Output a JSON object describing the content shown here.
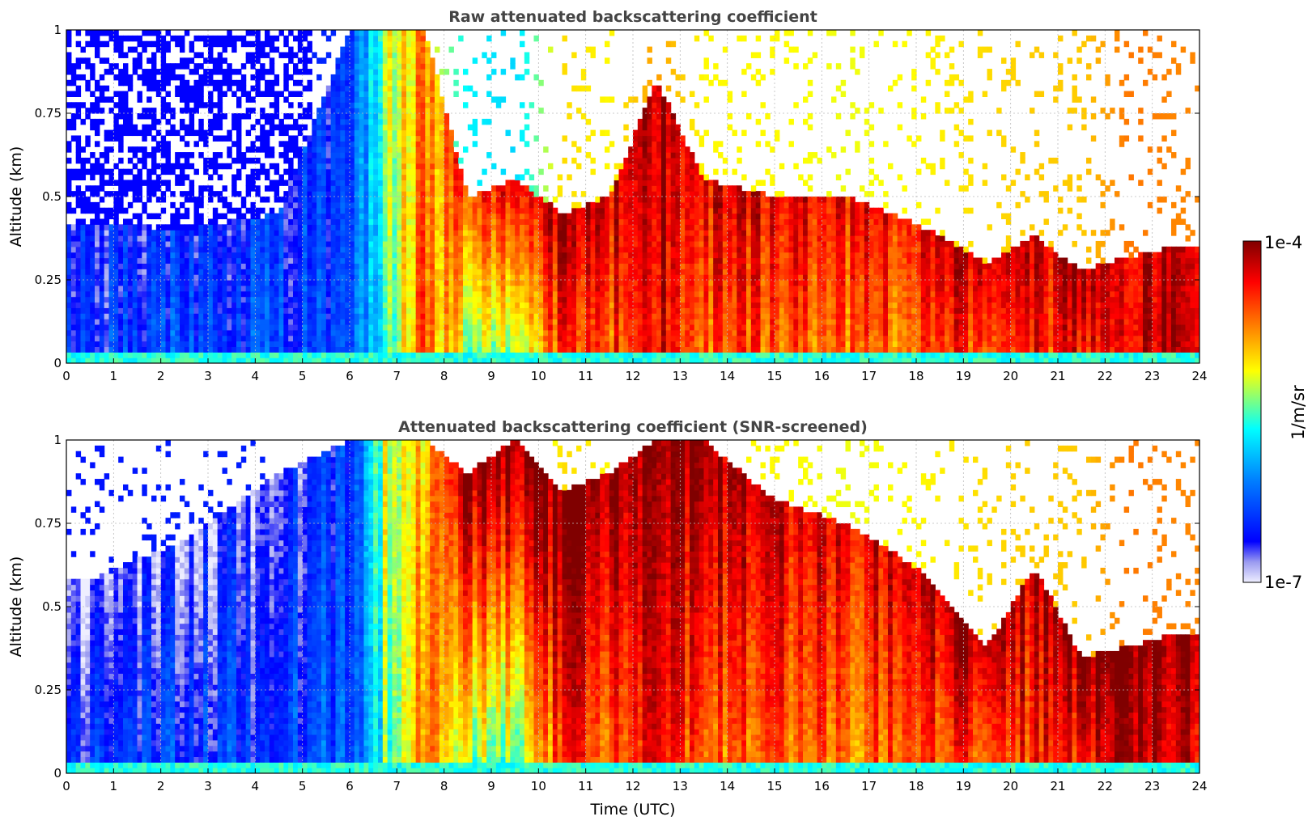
{
  "chart_data": [
    {
      "type": "heatmap",
      "title": "Raw attenuated backscattering coefficient",
      "xlabel": "",
      "ylabel": "Altitude (km)",
      "xlim": [
        0,
        24
      ],
      "ylim": [
        0,
        1
      ],
      "xticks": [
        "0",
        "1",
        "2",
        "3",
        "4",
        "5",
        "6",
        "7",
        "8",
        "9",
        "10",
        "11",
        "12",
        "13",
        "14",
        "15",
        "16",
        "17",
        "18",
        "19",
        "20",
        "21",
        "22",
        "23",
        "24"
      ],
      "yticks": [
        "0",
        "0.25",
        "0.5",
        "0.75",
        "1"
      ],
      "grid": true,
      "profiles": [
        {
          "t": 0.5,
          "base_level": 0.18,
          "layer_top_km": 0.42,
          "layer_level": 0.15,
          "noise_above": true
        },
        {
          "t": 2.5,
          "base_level": 0.22,
          "layer_top_km": 0.4,
          "layer_level": 0.15,
          "noise_above": true
        },
        {
          "t": 4.5,
          "base_level": 0.2,
          "layer_top_km": 0.45,
          "layer_level": 0.16,
          "noise_above": true
        },
        {
          "t": 6.0,
          "base_level": 0.22,
          "layer_top_km": 1.0,
          "layer_level": 0.18,
          "noise_above": false
        },
        {
          "t": 6.8,
          "base_level": 0.5,
          "layer_top_km": 1.0,
          "layer_level": 0.62
        },
        {
          "t": 7.6,
          "base_level": 0.8,
          "layer_top_km": 1.0,
          "layer_level": 0.7
        },
        {
          "t": 8.5,
          "base_level": 0.55,
          "layer_top_km": 0.5,
          "layer_level": 0.85
        },
        {
          "t": 9.5,
          "base_level": 0.5,
          "layer_top_km": 0.55,
          "layer_level": 0.85
        },
        {
          "t": 10.5,
          "base_level": 0.82,
          "layer_top_km": 0.45,
          "layer_level": 0.95
        },
        {
          "t": 11.5,
          "base_level": 0.78,
          "layer_top_km": 0.5,
          "layer_level": 0.92
        },
        {
          "t": 12.5,
          "base_level": 0.9,
          "layer_top_km": 0.85,
          "layer_level": 0.97
        },
        {
          "t": 13.5,
          "base_level": 0.78,
          "layer_top_km": 0.55,
          "layer_level": 0.9
        },
        {
          "t": 15.0,
          "base_level": 0.78,
          "layer_top_km": 0.5,
          "layer_level": 0.9
        },
        {
          "t": 16.5,
          "base_level": 0.76,
          "layer_top_km": 0.5,
          "layer_level": 0.88
        },
        {
          "t": 18.0,
          "base_level": 0.78,
          "layer_top_km": 0.42,
          "layer_level": 0.88
        },
        {
          "t": 19.5,
          "base_level": 0.82,
          "layer_top_km": 0.3,
          "layer_level": 0.96
        },
        {
          "t": 20.5,
          "base_level": 0.84,
          "layer_top_km": 0.38,
          "layer_level": 0.9
        },
        {
          "t": 21.5,
          "base_level": 0.84,
          "layer_top_km": 0.28,
          "layer_level": 0.96
        },
        {
          "t": 22.5,
          "base_level": 0.95,
          "layer_top_km": 0.32,
          "layer_level": 0.95
        },
        {
          "t": 23.5,
          "base_level": 0.93,
          "layer_top_km": 0.35,
          "layer_level": 0.93
        }
      ]
    },
    {
      "type": "heatmap",
      "title": "Attenuated backscattering coefficient (SNR-screened)",
      "xlabel": "Time (UTC)",
      "ylabel": "Altitude (km)",
      "xlim": [
        0,
        24
      ],
      "ylim": [
        0,
        1
      ],
      "xticks": [
        "0",
        "1",
        "2",
        "3",
        "4",
        "5",
        "6",
        "7",
        "8",
        "9",
        "10",
        "11",
        "12",
        "13",
        "14",
        "15",
        "16",
        "17",
        "18",
        "19",
        "20",
        "21",
        "22",
        "23",
        "24"
      ],
      "yticks": [
        "0",
        "0.25",
        "0.5",
        "0.75",
        "1"
      ],
      "grid": true,
      "profiles": [
        {
          "t": 0.5,
          "base_level": 0.18,
          "layer_top_km": 0.58,
          "layer_level": 0.05
        },
        {
          "t": 2.5,
          "base_level": 0.2,
          "layer_top_km": 0.7,
          "layer_level": 0.08
        },
        {
          "t": 4.5,
          "base_level": 0.2,
          "layer_top_km": 0.9,
          "layer_level": 0.1
        },
        {
          "t": 6.0,
          "base_level": 0.22,
          "layer_top_km": 1.0,
          "layer_level": 0.18
        },
        {
          "t": 6.8,
          "base_level": 0.5,
          "layer_top_km": 1.0,
          "layer_level": 0.62
        },
        {
          "t": 7.6,
          "base_level": 0.8,
          "layer_top_km": 1.0,
          "layer_level": 0.7
        },
        {
          "t": 8.5,
          "base_level": 0.55,
          "layer_top_km": 0.9,
          "layer_level": 1.0
        },
        {
          "t": 9.5,
          "base_level": 0.5,
          "layer_top_km": 1.0,
          "layer_level": 1.0
        },
        {
          "t": 10.5,
          "base_level": 0.82,
          "layer_top_km": 0.85,
          "layer_level": 1.0
        },
        {
          "t": 11.5,
          "base_level": 0.78,
          "layer_top_km": 0.9,
          "layer_level": 1.0
        },
        {
          "t": 12.5,
          "base_level": 0.9,
          "layer_top_km": 1.0,
          "layer_level": 0.97
        },
        {
          "t": 13.5,
          "base_level": 0.78,
          "layer_top_km": 1.0,
          "layer_level": 1.0
        },
        {
          "t": 15.0,
          "base_level": 0.78,
          "layer_top_km": 0.82,
          "layer_level": 0.92
        },
        {
          "t": 16.5,
          "base_level": 0.76,
          "layer_top_km": 0.75,
          "layer_level": 0.9
        },
        {
          "t": 18.0,
          "base_level": 0.78,
          "layer_top_km": 0.62,
          "layer_level": 0.92
        },
        {
          "t": 19.5,
          "base_level": 0.82,
          "layer_top_km": 0.38,
          "layer_level": 1.0
        },
        {
          "t": 20.5,
          "base_level": 0.84,
          "layer_top_km": 0.62,
          "layer_level": 0.92
        },
        {
          "t": 21.5,
          "base_level": 0.84,
          "layer_top_km": 0.35,
          "layer_level": 1.0
        },
        {
          "t": 22.5,
          "base_level": 0.95,
          "layer_top_km": 0.38,
          "layer_level": 1.0
        },
        {
          "t": 23.5,
          "base_level": 0.93,
          "layer_top_km": 0.42,
          "layer_level": 1.0
        }
      ]
    }
  ],
  "colorbar": {
    "label": "1/m/sr",
    "max_label": "1e-4",
    "min_label": "1e-7",
    "colormap": [
      "#eeeeff",
      "#9a9af0",
      "#0000ff",
      "#0080ff",
      "#00ffff",
      "#ffff00",
      "#ff8000",
      "#ff0000",
      "#800000"
    ]
  }
}
